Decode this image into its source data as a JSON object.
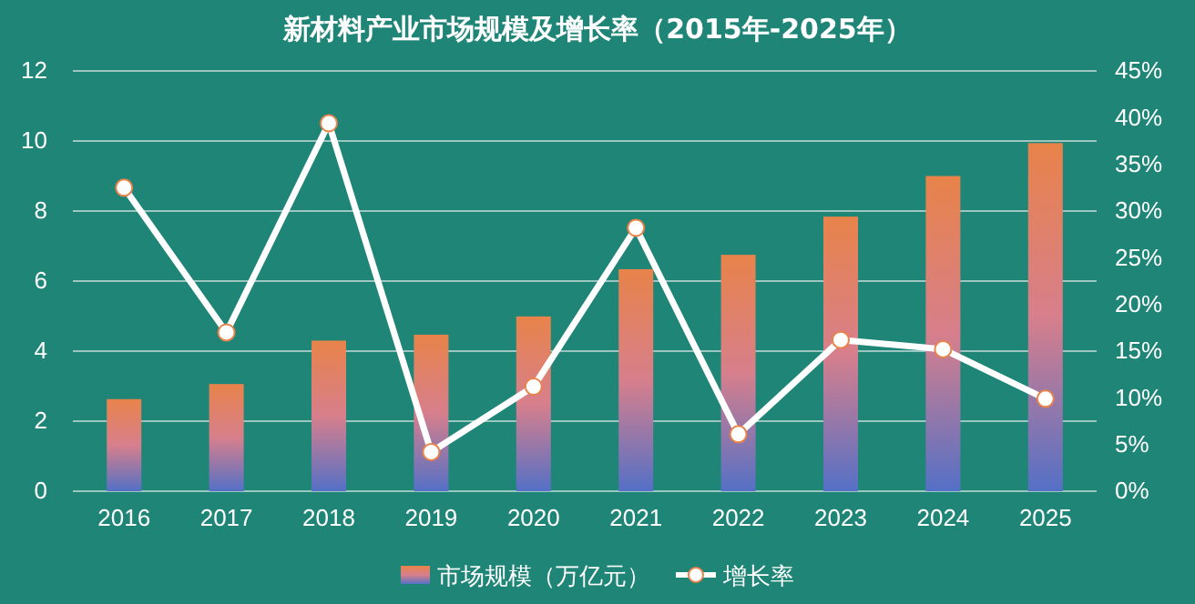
{
  "chart_data": {
    "type": "bar",
    "title": "新材料产业市场规模及增长率（2015年-2025年）",
    "categories": [
      "2016",
      "2017",
      "2018",
      "2019",
      "2020",
      "2021",
      "2022",
      "2023",
      "2024",
      "2025"
    ],
    "series": [
      {
        "name": "市场规模（万亿元）",
        "color": "#e8834a",
        "values": [
          2.63,
          3.06,
          4.3,
          4.47,
          4.99,
          6.34,
          6.75,
          7.84,
          9.0,
          9.94
        ]
      },
      {
        "name": "增长率",
        "type": "line",
        "axis": "y2",
        "color": "#ffffff",
        "values": [
          32.5,
          17.0,
          39.4,
          4.2,
          11.2,
          28.2,
          6.1,
          16.2,
          15.2,
          9.9
        ]
      }
    ],
    "ylim": [
      0,
      12
    ],
    "yticks": [
      0,
      2,
      4,
      6,
      8,
      10,
      12
    ],
    "y2lim": [
      0,
      45
    ],
    "y2ticks": [
      {
        "value": 0,
        "label": "0%"
      },
      {
        "value": 5,
        "label": "5%"
      },
      {
        "value": 10,
        "label": "10%"
      },
      {
        "value": 15,
        "label": "15%"
      },
      {
        "value": 20,
        "label": "20%"
      },
      {
        "value": 25,
        "label": "25%"
      },
      {
        "value": 30,
        "label": "30%"
      },
      {
        "value": 35,
        "label": "35%"
      },
      {
        "value": 40,
        "label": "40%"
      },
      {
        "value": 45,
        "label": "45%"
      }
    ],
    "grid": "y",
    "legend": "bottom",
    "marker": "circle",
    "line_style": "solid"
  }
}
